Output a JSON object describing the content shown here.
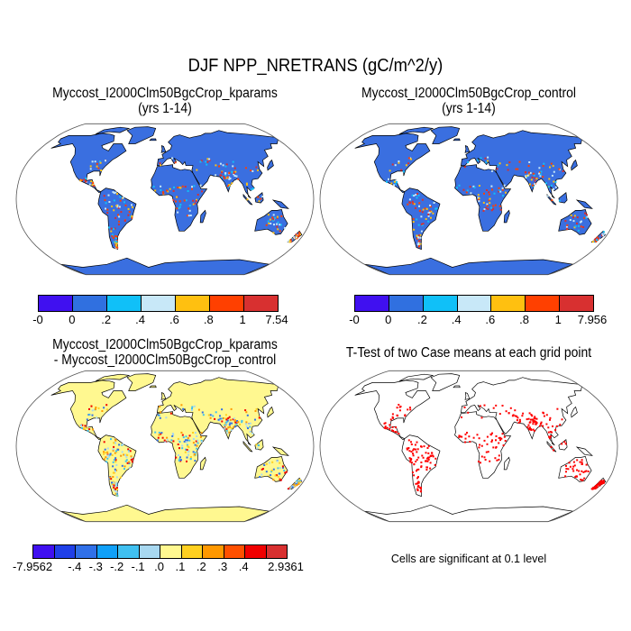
{
  "figure": {
    "title": "DJF NPP_NRETRANS (gC/m^2/y)"
  },
  "panels": [
    {
      "title_line1": "Myccost_I2000Clm50BgcCrop_kparams",
      "title_line2": "(yrs 1-14)",
      "land_color": "#3a6fe0",
      "speckle_colors": [
        "#ffc010",
        "#ff4000",
        "#d83030",
        "#c8e8f8",
        "#10c0f8"
      ]
    },
    {
      "title_line1": "Myccost_I2000Clm50BgcCrop_control",
      "title_line2": "(yrs 1-14)",
      "land_color": "#3a6fe0",
      "speckle_colors": [
        "#ffc010",
        "#ff4000",
        "#d83030",
        "#c8e8f8",
        "#10c0f8"
      ]
    },
    {
      "title_line1": "Myccost_I2000Clm50BgcCrop_kparams",
      "title_line2": "- Myccost_I2000Clm50BgcCrop_control",
      "land_color": "#fff890",
      "speckle_colors": [
        "#a8d8f0",
        "#40c0f0",
        "#3070e8",
        "#ffd020",
        "#ff9800",
        "#f00000"
      ]
    },
    {
      "title_line1": "T-Test of two Case means at each grid point",
      "title_line2": "",
      "land_color": "#ffffff",
      "speckle_colors": [
        "#ff0000"
      ],
      "note": "Cells are significant at 0.1 level"
    }
  ],
  "colorbars": [
    {
      "colors": [
        "#4010f0",
        "#3070e0",
        "#10c0f8",
        "#c8e8f8",
        "#ffc010",
        "#ff4000",
        "#d83030"
      ],
      "labels": [
        "-0",
        "0",
        ".2",
        ".4",
        ".6",
        ".8",
        "1",
        "7.54"
      ]
    },
    {
      "colors": [
        "#4010f0",
        "#3070e0",
        "#10c0f8",
        "#c8e8f8",
        "#ffc010",
        "#ff4000",
        "#d83030"
      ],
      "labels": [
        "-0",
        "0",
        ".2",
        ".4",
        ".6",
        ".8",
        "1",
        "7.956"
      ]
    },
    {
      "colors": [
        "#4010f0",
        "#2040e8",
        "#3070e8",
        "#10a0f8",
        "#40c0f0",
        "#a8d8f0",
        "#fff890",
        "#ffd020",
        "#ff9800",
        "#ff5000",
        "#f00000",
        "#d83030"
      ],
      "labels": [
        "-7.9562",
        "",
        "-.4",
        "-.3",
        "-.2",
        "-.1",
        ".0",
        ".1",
        ".2",
        ".3",
        ".4",
        "",
        "2.9361"
      ]
    }
  ]
}
